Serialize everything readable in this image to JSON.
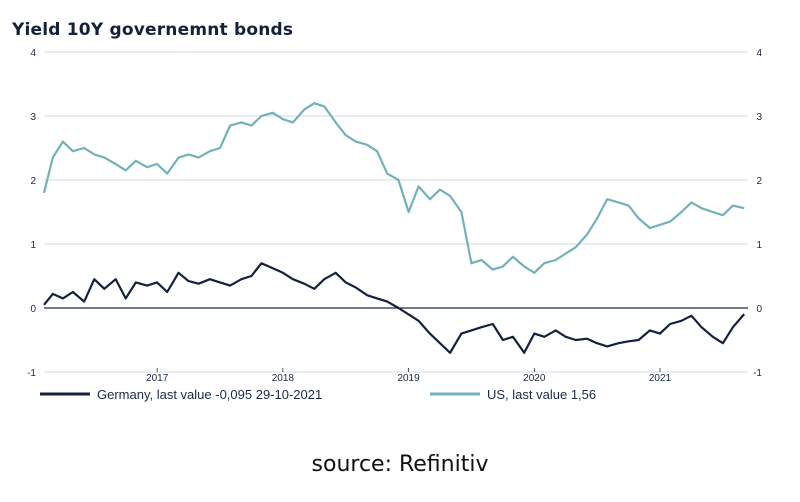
{
  "chart_data": {
    "type": "line",
    "title": "Yield 10Y governemnt bonds",
    "y_ticks": [
      "4",
      "3",
      "2",
      "1",
      "0",
      "-1"
    ],
    "ylim": [
      -1,
      4
    ],
    "x_ticks": [
      "2017",
      "2018",
      "2019",
      "2020",
      "2021"
    ],
    "x_tick_values": [
      2017.0,
      2018.0,
      2019.0,
      2020.0,
      2021.0
    ],
    "xlim": [
      2016.1,
      2021.7
    ],
    "grid": "horizontal",
    "legend_position": "bottom",
    "series": [
      {
        "name": "Germany, last value -0,095 29-10-2021",
        "color": "#14213d",
        "x": [
          2016.1,
          2016.17,
          2016.25,
          2016.33,
          2016.42,
          2016.5,
          2016.58,
          2016.67,
          2016.75,
          2016.83,
          2016.92,
          2017.0,
          2017.08,
          2017.17,
          2017.25,
          2017.33,
          2017.42,
          2017.5,
          2017.58,
          2017.67,
          2017.75,
          2017.83,
          2017.92,
          2018.0,
          2018.08,
          2018.17,
          2018.25,
          2018.33,
          2018.42,
          2018.5,
          2018.58,
          2018.67,
          2018.75,
          2018.83,
          2018.92,
          2019.0,
          2019.08,
          2019.17,
          2019.25,
          2019.33,
          2019.42,
          2019.5,
          2019.58,
          2019.67,
          2019.75,
          2019.83,
          2019.92,
          2020.0,
          2020.08,
          2020.17,
          2020.25,
          2020.33,
          2020.42,
          2020.5,
          2020.58,
          2020.67,
          2020.75,
          2020.83,
          2020.92,
          2021.0,
          2021.08,
          2021.17,
          2021.25,
          2021.33,
          2021.42,
          2021.5,
          2021.58,
          2021.67
        ],
        "values": [
          0.05,
          0.22,
          0.15,
          0.25,
          0.1,
          0.45,
          0.3,
          0.45,
          0.15,
          0.4,
          0.35,
          0.4,
          0.25,
          0.55,
          0.42,
          0.38,
          0.45,
          0.4,
          0.35,
          0.45,
          0.5,
          0.7,
          0.62,
          0.55,
          0.45,
          0.38,
          0.3,
          0.45,
          0.55,
          0.4,
          0.32,
          0.2,
          0.15,
          0.1,
          0.0,
          -0.1,
          -0.2,
          -0.4,
          -0.55,
          -0.7,
          -0.4,
          -0.35,
          -0.3,
          -0.25,
          -0.5,
          -0.45,
          -0.7,
          -0.4,
          -0.45,
          -0.35,
          -0.45,
          -0.5,
          -0.48,
          -0.55,
          -0.6,
          -0.55,
          -0.52,
          -0.5,
          -0.35,
          -0.4,
          -0.25,
          -0.2,
          -0.12,
          -0.3,
          -0.45,
          -0.55,
          -0.3,
          -0.095
        ]
      },
      {
        "name": "US, last value 1,56",
        "color": "#6fb3b8",
        "x": [
          2016.1,
          2016.17,
          2016.25,
          2016.33,
          2016.42,
          2016.5,
          2016.58,
          2016.67,
          2016.75,
          2016.83,
          2016.92,
          2017.0,
          2017.08,
          2017.17,
          2017.25,
          2017.33,
          2017.42,
          2017.5,
          2017.58,
          2017.67,
          2017.75,
          2017.83,
          2017.92,
          2018.0,
          2018.08,
          2018.17,
          2018.25,
          2018.33,
          2018.42,
          2018.5,
          2018.58,
          2018.67,
          2018.75,
          2018.83,
          2018.92,
          2019.0,
          2019.08,
          2019.17,
          2019.25,
          2019.33,
          2019.42,
          2019.5,
          2019.58,
          2019.67,
          2019.75,
          2019.83,
          2019.92,
          2020.0,
          2020.08,
          2020.17,
          2020.25,
          2020.33,
          2020.42,
          2020.5,
          2020.58,
          2020.67,
          2020.75,
          2020.83,
          2020.92,
          2021.0,
          2021.08,
          2021.17,
          2021.25,
          2021.33,
          2021.42,
          2021.5,
          2021.58,
          2021.67
        ],
        "values": [
          1.8,
          2.35,
          2.6,
          2.45,
          2.5,
          2.4,
          2.35,
          2.25,
          2.15,
          2.3,
          2.2,
          2.25,
          2.1,
          2.35,
          2.4,
          2.35,
          2.45,
          2.5,
          2.85,
          2.9,
          2.85,
          3.0,
          3.05,
          2.95,
          2.9,
          3.1,
          3.2,
          3.15,
          2.9,
          2.7,
          2.6,
          2.55,
          2.45,
          2.1,
          2.0,
          1.5,
          1.9,
          1.7,
          1.85,
          1.75,
          1.5,
          0.7,
          0.75,
          0.6,
          0.65,
          0.8,
          0.65,
          0.55,
          0.7,
          0.75,
          0.85,
          0.95,
          1.15,
          1.4,
          1.7,
          1.65,
          1.6,
          1.4,
          1.25,
          1.3,
          1.35,
          1.5,
          1.65,
          1.56,
          1.5,
          1.45,
          1.6,
          1.56
        ]
      }
    ]
  },
  "source_text": "source: Refinitiv"
}
